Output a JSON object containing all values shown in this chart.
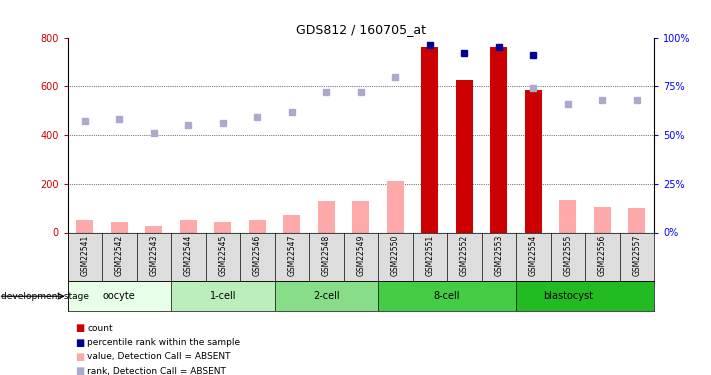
{
  "title": "GDS812 / 160705_at",
  "samples": [
    "GSM22541",
    "GSM22542",
    "GSM22543",
    "GSM22544",
    "GSM22545",
    "GSM22546",
    "GSM22547",
    "GSM22548",
    "GSM22549",
    "GSM22550",
    "GSM22551",
    "GSM22552",
    "GSM22553",
    "GSM22554",
    "GSM22555",
    "GSM22556",
    "GSM22557"
  ],
  "count_values": [
    0,
    0,
    0,
    0,
    0,
    0,
    0,
    0,
    0,
    0,
    760,
    625,
    760,
    585,
    0,
    0,
    0
  ],
  "count_absent": [
    50,
    45,
    28,
    50,
    45,
    50,
    72,
    130,
    130,
    210,
    0,
    0,
    0,
    0,
    135,
    105,
    100
  ],
  "rank_values": [
    0,
    0,
    0,
    0,
    0,
    0,
    0,
    0,
    0,
    0,
    96,
    92,
    95,
    91,
    0,
    0,
    0
  ],
  "rank_absent": [
    57,
    58,
    51,
    55,
    56,
    59,
    62,
    72,
    72,
    80,
    0,
    0,
    0,
    74,
    66,
    68,
    68
  ],
  "stages": [
    {
      "label": "oocyte",
      "start": 0,
      "end": 3,
      "color": "#e8ffe8"
    },
    {
      "label": "1-cell",
      "start": 3,
      "end": 6,
      "color": "#bbeebb"
    },
    {
      "label": "2-cell",
      "start": 6,
      "end": 9,
      "color": "#88dd88"
    },
    {
      "label": "8-cell",
      "start": 9,
      "end": 13,
      "color": "#44cc44"
    },
    {
      "label": "blastocyst",
      "start": 13,
      "end": 16,
      "color": "#22bb22"
    }
  ],
  "ylim_left": [
    0,
    800
  ],
  "ylim_right": [
    0,
    100
  ],
  "yticks_left": [
    0,
    200,
    400,
    600,
    800
  ],
  "yticks_right": [
    0,
    25,
    50,
    75,
    100
  ],
  "ytick_labels_right": [
    "0%",
    "25%",
    "50%",
    "75%",
    "100%"
  ],
  "grid_values": [
    200,
    400,
    600
  ],
  "bar_color_count": "#cc0000",
  "bar_color_absent": "#ffaaaa",
  "dot_color_rank": "#000099",
  "dot_color_rank_absent": "#aaaacc",
  "background_color": "#ffffff"
}
